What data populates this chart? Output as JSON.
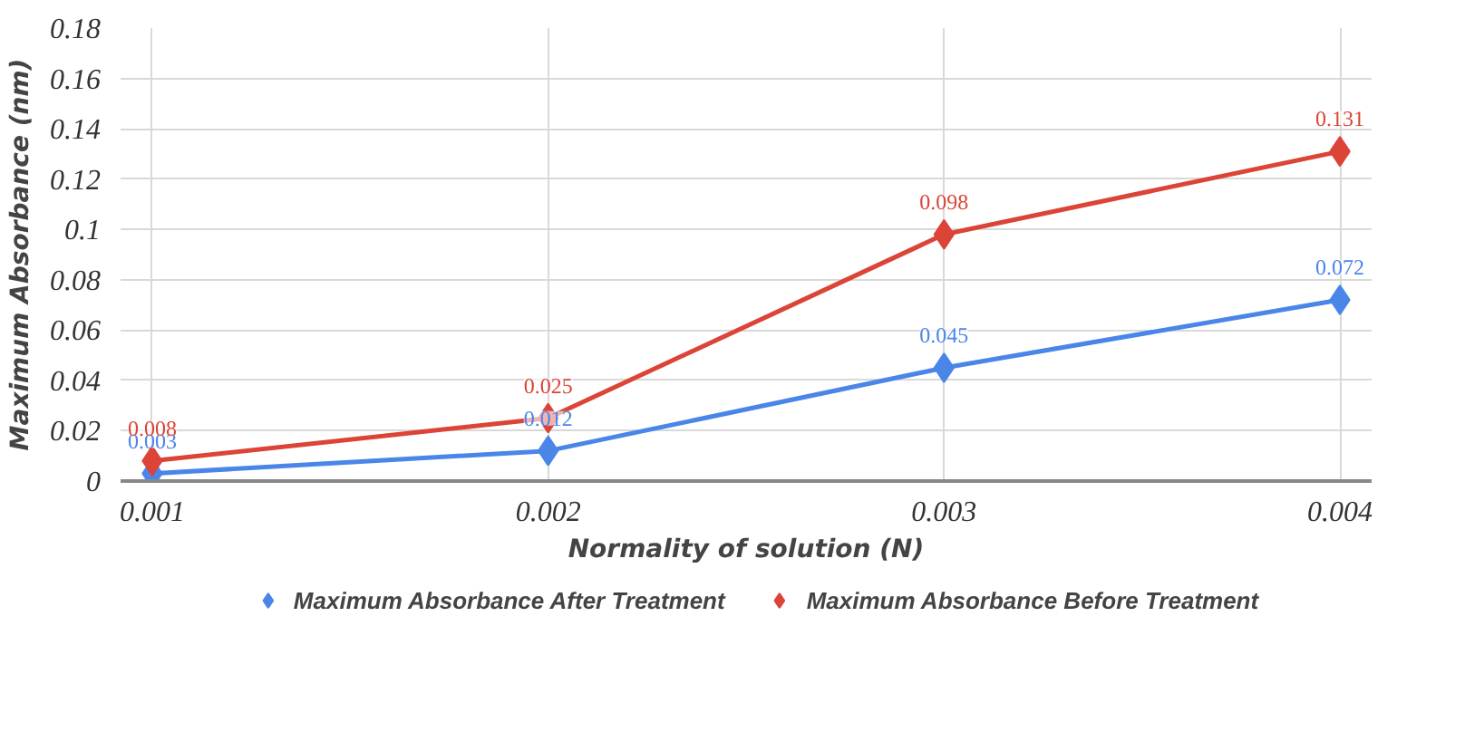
{
  "chart_data": {
    "type": "line",
    "xlabel": "Normality of solution (N)",
    "ylabel": "Maximum Absorbance (nm)",
    "x": [
      0.001,
      0.002,
      0.003,
      0.004
    ],
    "xlim": [
      0.00092,
      0.00408
    ],
    "xticks": [
      0.001,
      0.002,
      0.003,
      0.004
    ],
    "ylim": [
      0,
      0.18
    ],
    "yticks": [
      0,
      0.02,
      0.04,
      0.06,
      0.08,
      {
        "value": 0.1,
        "label": "0.1"
      },
      0.12,
      0.14,
      0.16,
      0.18
    ],
    "series": [
      {
        "name": "Maximum Absorbance After Treatment",
        "color": "#4a86e8",
        "values": [
          0.003,
          0.012,
          0.045,
          0.072
        ]
      },
      {
        "name": "Maximum Absorbance Before Treatment",
        "color": "#db4437",
        "values": [
          0.008,
          0.025,
          0.098,
          0.131
        ]
      }
    ],
    "data_labels": true,
    "grid": true,
    "legend": "bottom",
    "marker": "diamond",
    "line_style": "solid"
  }
}
